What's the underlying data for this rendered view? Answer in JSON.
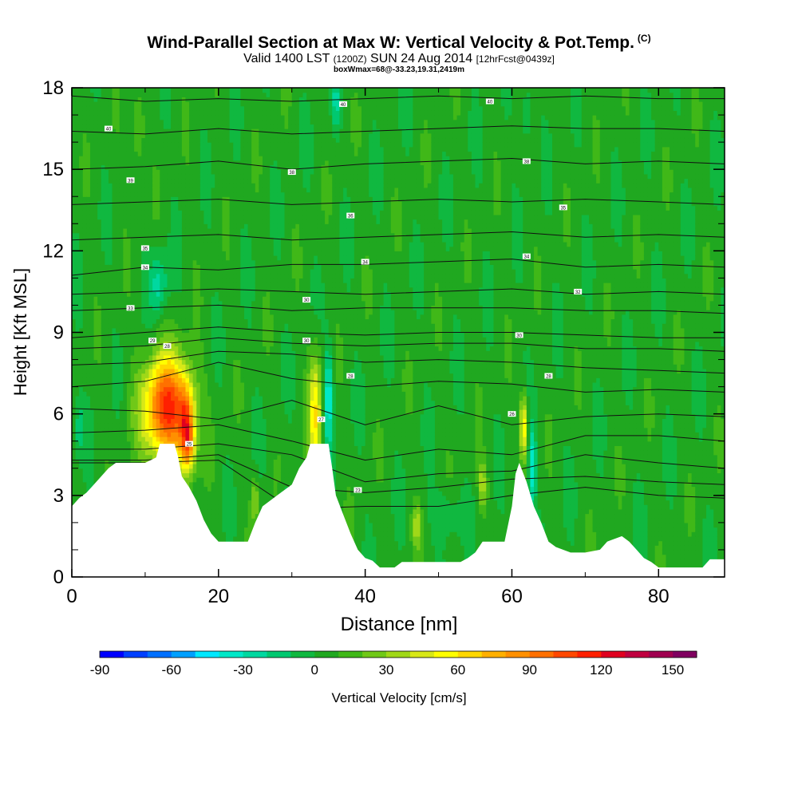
{
  "header": {
    "title": "Wind-Parallel Section at Max W: Vertical Velocity & Pot.Temp.",
    "copyright": "(C)",
    "valid_prefix": "Valid 1400 LST",
    "valid_utc": "(1200Z)",
    "valid_date": "SUN 24 Aug 2014",
    "forecast": "[12hrFcst@0439z]",
    "boxinfo": "boxWmax=68@-33.23,19.31,2419m"
  },
  "chart_data": {
    "type": "heatmap",
    "xlabel": "Distance [nm]",
    "ylabel": "Height [Kft MSL]",
    "xlim": [
      0,
      89
    ],
    "ylim": [
      0,
      18
    ],
    "x_ticks": [
      0,
      20,
      40,
      60,
      80
    ],
    "y_ticks": [
      0,
      3,
      6,
      9,
      12,
      15,
      18
    ],
    "colorbar": {
      "label": "Vertical Velocity [cm/s]",
      "min": -90,
      "max": 160,
      "step": 10,
      "tick_labels": [
        -90,
        -60,
        -30,
        0,
        30,
        60,
        90,
        120,
        150
      ],
      "colors": [
        "#0000ff",
        "#0040ff",
        "#0070ff",
        "#00a0ff",
        "#00e8ff",
        "#00e8c8",
        "#00d8a0",
        "#00c870",
        "#10b840",
        "#20a820",
        "#40b818",
        "#70c818",
        "#a0d818",
        "#d8e818",
        "#ffff00",
        "#ffd800",
        "#ffb000",
        "#ff9000",
        "#ff7000",
        "#ff4800",
        "#ff2000",
        "#e00020",
        "#c00040",
        "#a00050",
        "#800060"
      ]
    },
    "terrain": [
      [
        0,
        2.6
      ],
      [
        1,
        2.9
      ],
      [
        2,
        3.1
      ],
      [
        3,
        3.4
      ],
      [
        4,
        3.7
      ],
      [
        5,
        4.0
      ],
      [
        6,
        4.2
      ],
      [
        8,
        4.2
      ],
      [
        10,
        4.2
      ],
      [
        11.5,
        4.4
      ],
      [
        12,
        4.9
      ],
      [
        14,
        4.9
      ],
      [
        14.5,
        4.4
      ],
      [
        15,
        3.7
      ],
      [
        16,
        3.3
      ],
      [
        17,
        2.8
      ],
      [
        18,
        2.1
      ],
      [
        19,
        1.6
      ],
      [
        20,
        1.3
      ],
      [
        22,
        1.3
      ],
      [
        24,
        1.3
      ],
      [
        25,
        2.0
      ],
      [
        26,
        2.6
      ],
      [
        28,
        3.0
      ],
      [
        30,
        3.4
      ],
      [
        31,
        4.0
      ],
      [
        32,
        4.4
      ],
      [
        32.5,
        4.9
      ],
      [
        35,
        4.9
      ],
      [
        35.5,
        4.0
      ],
      [
        36,
        3.0
      ],
      [
        37,
        2.3
      ],
      [
        38,
        1.6
      ],
      [
        39,
        1.0
      ],
      [
        40,
        0.7
      ],
      [
        41,
        0.6
      ],
      [
        42,
        0.35
      ],
      [
        44,
        0.35
      ],
      [
        45,
        0.55
      ],
      [
        46,
        0.55
      ],
      [
        47,
        0.55
      ],
      [
        53,
        0.55
      ],
      [
        54,
        0.7
      ],
      [
        55,
        0.9
      ],
      [
        56,
        1.3
      ],
      [
        59,
        1.3
      ],
      [
        60,
        2.6
      ],
      [
        60.5,
        3.8
      ],
      [
        61,
        4.2
      ],
      [
        62,
        3.5
      ],
      [
        63,
        2.6
      ],
      [
        64,
        2.0
      ],
      [
        65,
        1.3
      ],
      [
        66,
        1.1
      ],
      [
        68,
        0.9
      ],
      [
        70,
        0.9
      ],
      [
        72,
        1.0
      ],
      [
        73,
        1.3
      ],
      [
        75,
        1.5
      ],
      [
        76,
        1.3
      ],
      [
        77,
        1.0
      ],
      [
        78,
        0.7
      ],
      [
        79,
        0.55
      ],
      [
        80,
        0.35
      ],
      [
        86,
        0.35
      ],
      [
        87,
        0.65
      ],
      [
        89,
        0.65
      ]
    ],
    "theta_contours": [
      {
        "label": "40",
        "heights": [
          17.7,
          17.5,
          17.6,
          17.5,
          17.6,
          17.7,
          17.6,
          17.7,
          17.6,
          17.6
        ]
      },
      {
        "label": "38",
        "heights": [
          16.4,
          16.3,
          16.5,
          16.3,
          16.4,
          16.5,
          16.6,
          16.5,
          16.5,
          16.4
        ]
      },
      {
        "label": "38",
        "heights": [
          15.0,
          15.1,
          15.3,
          15.0,
          15.2,
          15.3,
          15.4,
          15.2,
          15.3,
          15.2
        ]
      },
      {
        "label": "36",
        "heights": [
          13.7,
          13.8,
          13.9,
          13.7,
          13.8,
          13.9,
          13.8,
          13.9,
          13.8,
          13.7
        ]
      },
      {
        "label": "35",
        "heights": [
          12.4,
          12.5,
          12.6,
          12.4,
          12.5,
          12.6,
          12.7,
          12.5,
          12.6,
          12.5
        ]
      },
      {
        "label": "34",
        "heights": [
          11.1,
          11.4,
          11.3,
          11.5,
          11.5,
          11.6,
          11.7,
          11.4,
          11.5,
          11.4
        ]
      },
      {
        "label": "33",
        "heights": [
          10.4,
          10.5,
          10.6,
          10.5,
          10.4,
          10.5,
          10.6,
          10.4,
          10.5,
          10.4
        ]
      },
      {
        "label": "32",
        "heights": [
          9.8,
          9.9,
          10.0,
          9.8,
          9.9,
          9.9,
          9.9,
          9.8,
          9.8,
          9.7
        ]
      },
      {
        "label": "31",
        "heights": [
          8.8,
          9.0,
          9.2,
          9.0,
          8.9,
          9.0,
          9.0,
          8.9,
          8.8,
          8.8
        ]
      },
      {
        "label": "30",
        "heights": [
          8.4,
          8.5,
          8.8,
          8.6,
          8.5,
          8.6,
          8.6,
          8.4,
          8.4,
          8.3
        ]
      },
      {
        "label": "29",
        "heights": [
          7.8,
          7.9,
          8.3,
          8.2,
          7.9,
          8.0,
          7.9,
          7.7,
          7.6,
          7.5
        ]
      },
      {
        "label": "28",
        "heights": [
          7.0,
          7.2,
          7.9,
          7.3,
          7.0,
          7.2,
          7.1,
          6.8,
          6.9,
          6.8
        ]
      },
      {
        "label": "27",
        "heights": [
          6.2,
          6.1,
          5.8,
          6.5,
          5.6,
          6.3,
          5.6,
          5.9,
          6.0,
          5.9
        ]
      },
      {
        "label": "26",
        "heights": [
          5.3,
          5.4,
          5.6,
          5.0,
          4.3,
          4.7,
          4.5,
          5.2,
          5.2,
          5.0
        ]
      },
      {
        "label": "25",
        "heights": [
          4.7,
          4.7,
          4.9,
          4.5,
          3.5,
          3.8,
          3.9,
          4.5,
          4.2,
          4.0
        ]
      },
      {
        "label": "24",
        "heights": [
          4.3,
          4.3,
          4.5,
          3.3,
          3.1,
          3.3,
          3.6,
          3.7,
          3.5,
          3.4
        ]
      },
      {
        "label": "23",
        "heights": [
          4.2,
          4.2,
          4.3,
          2.5,
          2.6,
          2.6,
          3.0,
          3.3,
          3.0,
          2.9
        ]
      }
    ],
    "theta_x": [
      0,
      10,
      20,
      30,
      40,
      50,
      60,
      70,
      80,
      89
    ],
    "contour_labels": [
      {
        "text": "40",
        "x": 5,
        "y": 16.5
      },
      {
        "text": "40",
        "x": 37,
        "y": 17.4
      },
      {
        "text": "40",
        "x": 57,
        "y": 17.5
      },
      {
        "text": "39",
        "x": 8,
        "y": 14.6
      },
      {
        "text": "38",
        "x": 30,
        "y": 14.9
      },
      {
        "text": "38",
        "x": 62,
        "y": 15.3
      },
      {
        "text": "36",
        "x": 38,
        "y": 13.3
      },
      {
        "text": "35",
        "x": 10,
        "y": 12.1
      },
      {
        "text": "35",
        "x": 67,
        "y": 13.6
      },
      {
        "text": "34",
        "x": 10,
        "y": 11.4
      },
      {
        "text": "34",
        "x": 40,
        "y": 11.6
      },
      {
        "text": "34",
        "x": 62,
        "y": 11.8
      },
      {
        "text": "33",
        "x": 8,
        "y": 9.9
      },
      {
        "text": "32",
        "x": 69,
        "y": 10.5
      },
      {
        "text": "30",
        "x": 32,
        "y": 10.2
      },
      {
        "text": "30",
        "x": 32,
        "y": 8.7
      },
      {
        "text": "30",
        "x": 61,
        "y": 8.9
      },
      {
        "text": "29",
        "x": 11,
        "y": 8.7
      },
      {
        "text": "28",
        "x": 13,
        "y": 8.5
      },
      {
        "text": "28",
        "x": 38,
        "y": 7.4
      },
      {
        "text": "28",
        "x": 65,
        "y": 7.4
      },
      {
        "text": "27",
        "x": 34,
        "y": 5.8
      },
      {
        "text": "26",
        "x": 60,
        "y": 6.0
      },
      {
        "text": "25",
        "x": 16,
        "y": 4.9
      },
      {
        "text": "23",
        "x": 39,
        "y": 3.2
      }
    ],
    "w_features": [
      {
        "x": 13,
        "y": 6.2,
        "rx": 3.2,
        "ry": 1.9,
        "amp": 110
      },
      {
        "x": 15.6,
        "y": 5.6,
        "rx": 1.0,
        "ry": 1.5,
        "amp": 60
      },
      {
        "x": 16.0,
        "y": 4.8,
        "rx": 0.8,
        "ry": 1.0,
        "amp": 40
      },
      {
        "x": 33.2,
        "y": 6.0,
        "rx": 0.9,
        "ry": 2.2,
        "amp": 55
      },
      {
        "x": 35.0,
        "y": 6.6,
        "rx": 0.6,
        "ry": 1.8,
        "amp": -45
      },
      {
        "x": 61.6,
        "y": 5.5,
        "rx": 0.5,
        "ry": 1.2,
        "amp": 60
      },
      {
        "x": 62.8,
        "y": 4.0,
        "rx": 0.5,
        "ry": 1.5,
        "amp": -40
      },
      {
        "x": 11.8,
        "y": 10.8,
        "rx": 1.3,
        "ry": 1.2,
        "amp": -28
      },
      {
        "x": 47.0,
        "y": 1.9,
        "rx": 0.6,
        "ry": 0.8,
        "amp": 30
      },
      {
        "x": 56.0,
        "y": 3.4,
        "rx": 0.6,
        "ry": 0.9,
        "amp": 32
      },
      {
        "x": 25.0,
        "y": 2.8,
        "rx": 0.5,
        "ry": 0.9,
        "amp": 28
      },
      {
        "x": 29.0,
        "y": 2.5,
        "rx": 0.7,
        "ry": 0.9,
        "amp": -24
      },
      {
        "x": 51.0,
        "y": 2.3,
        "rx": 2.2,
        "ry": 0.9,
        "amp": -15
      },
      {
        "x": 36.0,
        "y": 17.5,
        "rx": 0.5,
        "ry": 1.0,
        "amp": -25
      },
      {
        "x": 62.0,
        "y": 17.0,
        "rx": 0.5,
        "ry": 1.2,
        "amp": -20
      },
      {
        "x": 9.0,
        "y": 16.4,
        "rx": 0.8,
        "ry": 1.3,
        "amp": 22
      },
      {
        "x": 1.0,
        "y": 5.5,
        "rx": 0.5,
        "ry": 1.0,
        "amp": -22
      }
    ]
  }
}
